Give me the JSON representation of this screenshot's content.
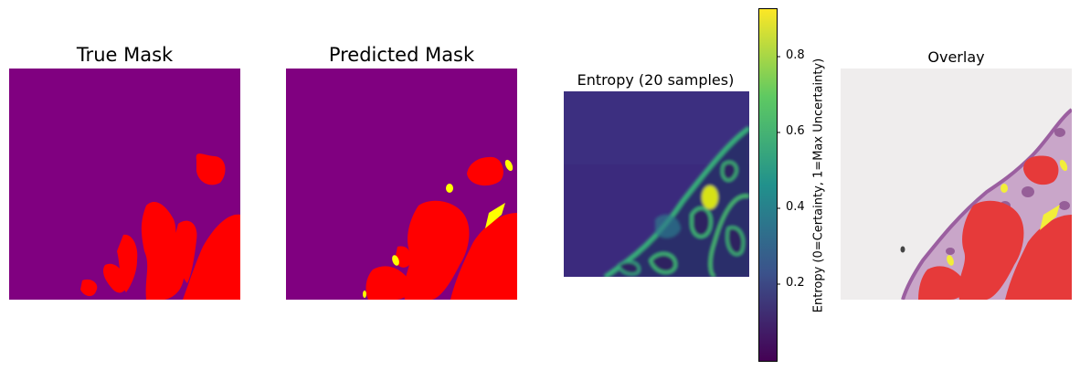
{
  "panels": {
    "true_mask": {
      "title": "True Mask"
    },
    "predicted_mask": {
      "title": "Predicted Mask"
    },
    "entropy": {
      "title": "Entropy (20 samples)"
    },
    "overlay": {
      "title": "Overlay"
    }
  },
  "colorbar": {
    "label": "Entropy (0=Certainty, 1=Max Uncertainty)",
    "ticks": [
      "0.2",
      "0.4",
      "0.6",
      "0.8"
    ],
    "colormap": "viridis",
    "colors": [
      "#440154",
      "#3b528b",
      "#21918c",
      "#5ec962",
      "#fde725"
    ]
  },
  "colors": {
    "background_class": "#800080",
    "tumor_class": "#ff0000",
    "false_positive": "#ffff00"
  }
}
